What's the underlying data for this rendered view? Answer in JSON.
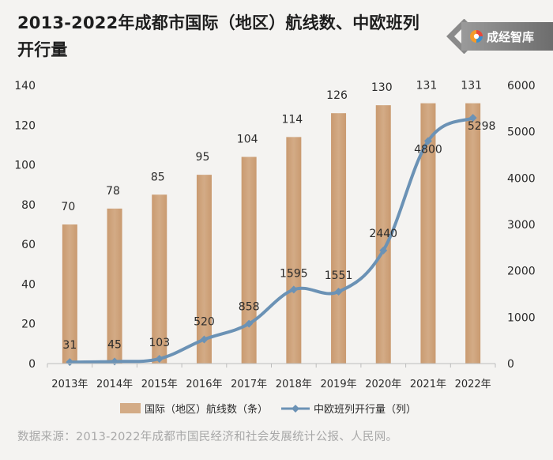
{
  "header": {
    "title": "2013-2022年成都市国际（地区）航线数、中欧班列开行量",
    "brand": "成经智库"
  },
  "footer": {
    "source": "数据来源：2013-2022年成都市国民经济和社会发展统计公报、人民网。"
  },
  "colors": {
    "bar": "#d3ab86",
    "line": "#6b92b5",
    "axis": "#bdbdbd",
    "text": "#2a2a2a"
  },
  "chart_data": {
    "type": "bar+line",
    "title": "2013-2022年成都市国际（地区）航线数、中欧班列开行量",
    "categories": [
      "2013年",
      "2014年",
      "2015年",
      "2016年",
      "2017年",
      "2018年",
      "2019年",
      "2020年",
      "2021年",
      "2022年"
    ],
    "series": [
      {
        "name": "国际（地区）航线数（条）",
        "type": "bar",
        "axis": "left",
        "values": [
          70,
          78,
          85,
          95,
          104,
          114,
          126,
          130,
          131,
          131
        ]
      },
      {
        "name": "中欧班列开行量（列）",
        "type": "line",
        "axis": "right",
        "values": [
          31,
          45,
          103,
          520,
          858,
          1595,
          1551,
          2440,
          4800,
          5298
        ]
      }
    ],
    "y_left": {
      "min": 0,
      "max": 140,
      "ticks": [
        0,
        20,
        40,
        60,
        80,
        100,
        120,
        140
      ]
    },
    "y_right": {
      "min": 0,
      "max": 6000,
      "ticks": [
        0,
        1000,
        2000,
        3000,
        4000,
        5000,
        6000
      ]
    },
    "legend_position": "bottom",
    "grid": false
  }
}
